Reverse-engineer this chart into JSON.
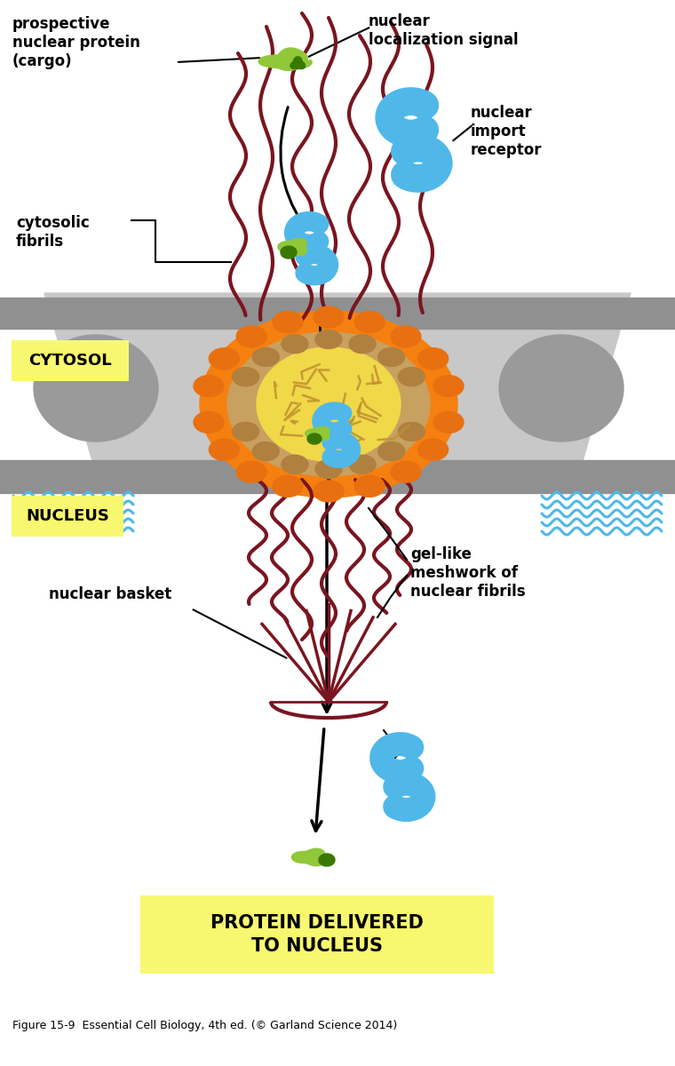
{
  "bg_color": "#ffffff",
  "light_gray": "#c8c8c8",
  "mid_gray": "#a0a0a0",
  "dark_gray": "#888888",
  "orange_color": "#f58010",
  "dark_orange": "#d06000",
  "tan_color": "#c8a060",
  "brown_tan": "#b08040",
  "yellow_center": "#f0d848",
  "dark_red_color": "#7a1520",
  "blue_color": "#50b8e8",
  "green_light": "#90c83a",
  "green_dark": "#3a7800",
  "cytosol_yellow": "#f8f870",
  "label_cytosol": "CYTOSOL",
  "label_nucleus": "NUCLEUS",
  "label_nuclear_basket": "nuclear basket",
  "label_gel": "gel-like\nmeshwork of\nnuclear fibrils",
  "label_prospective": "prospective\nnuclear protein\n(cargo)",
  "label_nls": "nuclear\nlocalization signal",
  "label_receptor": "nuclear\nimport\nreceptor",
  "label_fibrils": "cytosolic\nfibrils",
  "label_delivered": "PROTEIN DELIVERED\nTO NUCLEUS",
  "label_caption": "Figure 15-9  Essential Cell Biology, 4th ed. (© Garland Science 2014)",
  "figsize": [
    7.6,
    12.0
  ]
}
